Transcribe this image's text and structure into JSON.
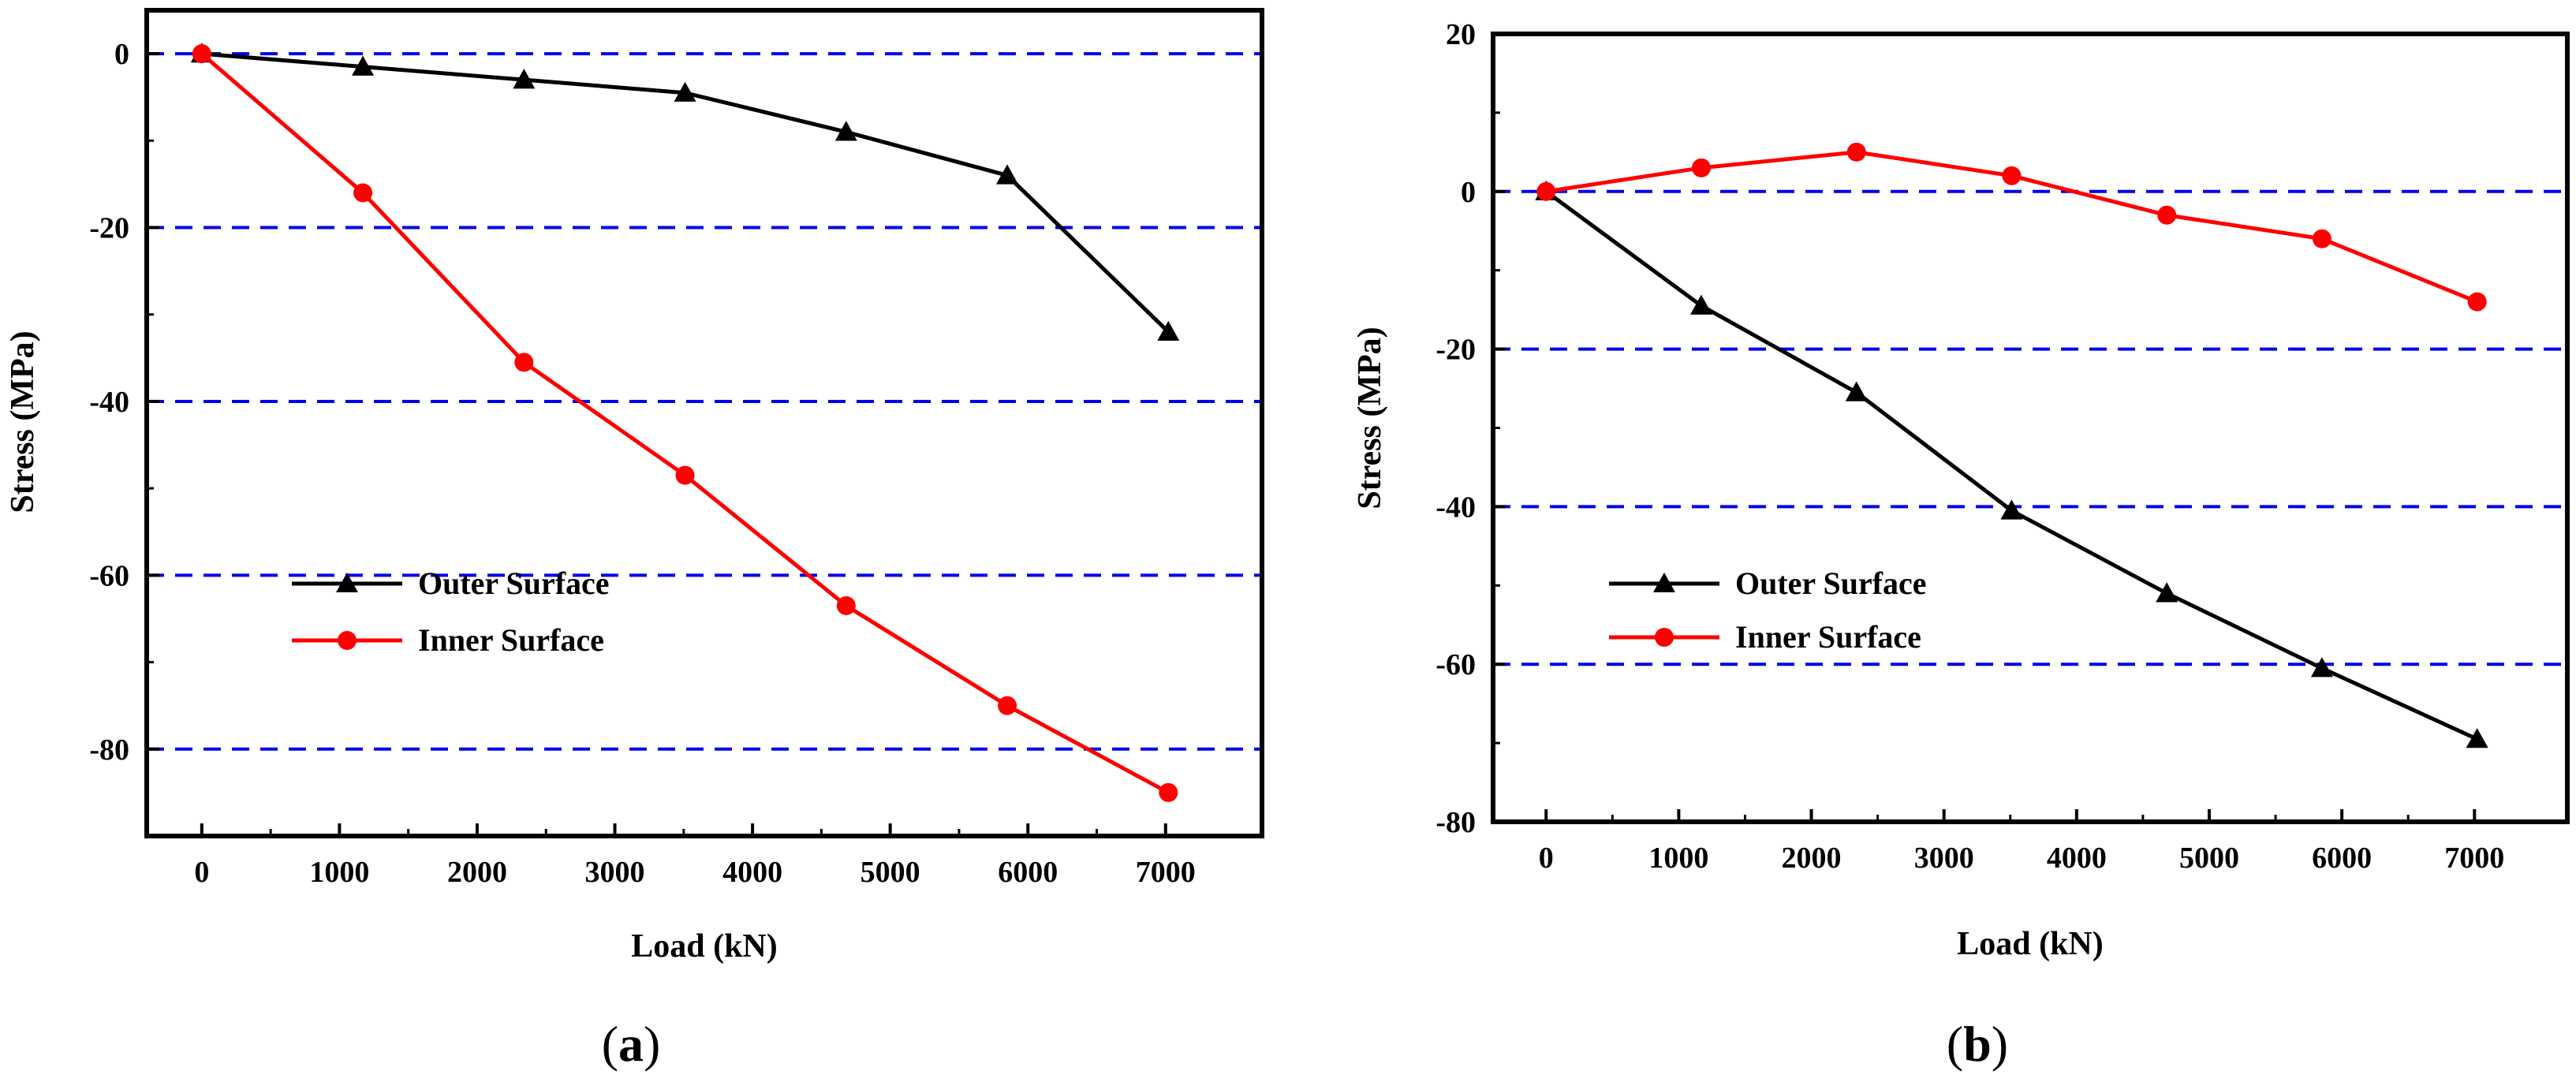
{
  "chart_data": [
    {
      "type": "line",
      "panel_label": "(a)",
      "panel_letter": "a",
      "xlabel": "Load (kN)",
      "ylabel": "Stress (MPa)",
      "xlim": [
        -400,
        7700
      ],
      "ylim": [
        -90,
        5
      ],
      "xticks": [
        0,
        1000,
        2000,
        3000,
        4000,
        5000,
        6000,
        7000
      ],
      "yticks": [
        0,
        -20,
        -40,
        -60,
        -80
      ],
      "grid_y": [
        0,
        -20,
        -40,
        -60,
        -80
      ],
      "legend_position": "lower-left",
      "series": [
        {
          "name": "Outer Surface",
          "color": "#000000",
          "marker": "triangle",
          "x": [
            0,
            1170,
            2340,
            3510,
            4680,
            5850,
            7020
          ],
          "y": [
            0,
            -1.5,
            -3,
            -4.5,
            -9,
            -14,
            -32
          ]
        },
        {
          "name": "Inner Surface",
          "color": "#ff0000",
          "marker": "circle",
          "x": [
            0,
            1170,
            2340,
            3510,
            4680,
            5850,
            7020
          ],
          "y": [
            0,
            -16,
            -35.5,
            -48.5,
            -63.5,
            -75,
            -85
          ]
        }
      ]
    },
    {
      "type": "line",
      "panel_label": "(b)",
      "panel_letter": "b",
      "xlabel": "Load (kN)",
      "ylabel": "Stress (MPa)",
      "xlim": [
        -400,
        7700
      ],
      "ylim": [
        -80,
        20
      ],
      "xticks": [
        0,
        1000,
        2000,
        3000,
        4000,
        5000,
        6000,
        7000
      ],
      "yticks": [
        20,
        0,
        -20,
        -40,
        -60,
        -80
      ],
      "grid_y": [
        0,
        -20,
        -40,
        -60
      ],
      "legend_position": "lower-left",
      "series": [
        {
          "name": "Outer Surface",
          "color": "#000000",
          "marker": "triangle",
          "x": [
            0,
            1170,
            2340,
            3510,
            4680,
            5850,
            7020
          ],
          "y": [
            0,
            -14.5,
            -25.5,
            -40.5,
            -51,
            -60.5,
            -69.5
          ]
        },
        {
          "name": "Inner Surface",
          "color": "#ff0000",
          "marker": "circle",
          "x": [
            0,
            1170,
            2340,
            3510,
            4680,
            5850,
            7020
          ],
          "y": [
            0,
            3,
            5,
            2,
            -3,
            -6,
            -14
          ]
        }
      ]
    }
  ],
  "colors": {
    "grid": "#0000ee",
    "axis": "#000000"
  }
}
